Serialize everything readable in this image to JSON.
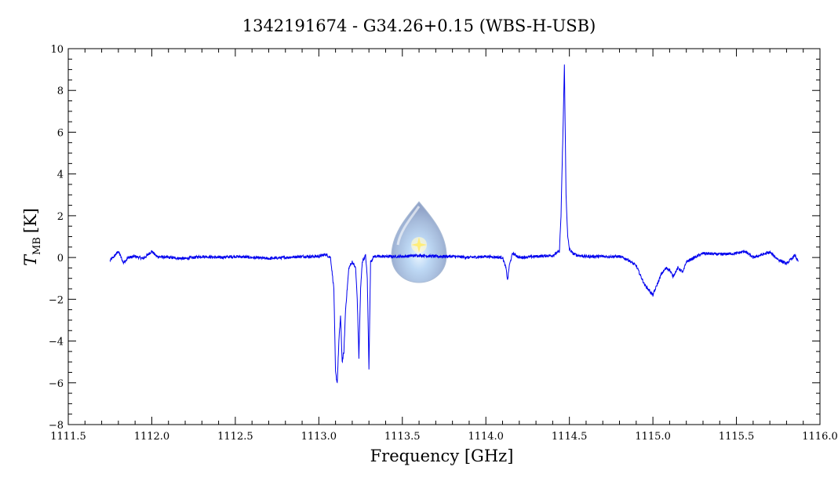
{
  "chart_data": {
    "type": "line",
    "title": "1342191674 - G34.26+0.15 (WBS-H-USB)",
    "xlabel": "Frequency [GHz]",
    "ylabel_main": "T",
    "ylabel_sub": "MB",
    "ylabel_unit": "[K]",
    "xlim": [
      1111.5,
      1116.0
    ],
    "ylim": [
      -8,
      10
    ],
    "x_ticks": [
      "1111.5",
      "1112.0",
      "1112.5",
      "1113.0",
      "1113.5",
      "1114.0",
      "1114.5",
      "1115.0",
      "1115.5",
      "1116.0"
    ],
    "y_ticks": [
      "−8",
      "−6",
      "−4",
      "−2",
      "0",
      "2",
      "4",
      "6",
      "8",
      "10"
    ],
    "series": [
      {
        "color": "#0000ee",
        "x": [
          1111.75,
          1111.78,
          1111.8,
          1111.83,
          1111.86,
          1111.9,
          1111.95,
          1112.0,
          1112.03,
          1112.1,
          1112.2,
          1112.3,
          1112.4,
          1112.5,
          1112.6,
          1112.7,
          1112.8,
          1112.9,
          1113.0,
          1113.04,
          1113.07,
          1113.09,
          1113.1,
          1113.11,
          1113.12,
          1113.13,
          1113.14,
          1113.15,
          1113.16,
          1113.17,
          1113.18,
          1113.2,
          1113.22,
          1113.23,
          1113.24,
          1113.25,
          1113.26,
          1113.28,
          1113.29,
          1113.3,
          1113.31,
          1113.33,
          1113.4,
          1113.5,
          1113.6,
          1113.7,
          1113.8,
          1113.9,
          1114.0,
          1114.1,
          1114.12,
          1114.13,
          1114.14,
          1114.16,
          1114.2,
          1114.3,
          1114.4,
          1114.44,
          1114.45,
          1114.46,
          1114.47,
          1114.48,
          1114.49,
          1114.5,
          1114.52,
          1114.55,
          1114.6,
          1114.7,
          1114.8,
          1114.85,
          1114.9,
          1114.95,
          1114.98,
          1115.0,
          1115.02,
          1115.05,
          1115.08,
          1115.1,
          1115.12,
          1115.15,
          1115.18,
          1115.2,
          1115.25,
          1115.3,
          1115.4,
          1115.5,
          1115.55,
          1115.6,
          1115.7,
          1115.75,
          1115.8,
          1115.85,
          1115.87
        ],
        "y": [
          -0.15,
          0.1,
          0.3,
          -0.25,
          0.0,
          0.05,
          -0.05,
          0.3,
          0.05,
          0.0,
          -0.05,
          0.05,
          0.0,
          0.05,
          0.0,
          -0.05,
          0.0,
          0.05,
          0.05,
          0.15,
          0.0,
          -1.5,
          -5.5,
          -6.0,
          -4.0,
          -2.8,
          -5.0,
          -4.5,
          -2.5,
          -1.5,
          -0.5,
          -0.2,
          -0.5,
          -2.0,
          -4.8,
          -1.5,
          -0.2,
          0.1,
          -1.0,
          -5.3,
          -0.2,
          0.05,
          0.05,
          0.05,
          0.1,
          0.05,
          0.05,
          0.0,
          0.05,
          0.0,
          -0.5,
          -1.1,
          -0.4,
          0.2,
          0.0,
          0.05,
          0.1,
          0.3,
          2.0,
          5.5,
          9.2,
          3.0,
          1.0,
          0.4,
          0.2,
          0.1,
          0.05,
          0.05,
          0.05,
          -0.1,
          -0.4,
          -1.3,
          -1.6,
          -1.8,
          -1.4,
          -0.8,
          -0.5,
          -0.6,
          -0.9,
          -0.5,
          -0.7,
          -0.2,
          0.0,
          0.2,
          0.15,
          0.2,
          0.3,
          0.0,
          0.25,
          -0.1,
          -0.3,
          0.1,
          -0.2
        ]
      }
    ],
    "grid": false,
    "legend": "none"
  }
}
